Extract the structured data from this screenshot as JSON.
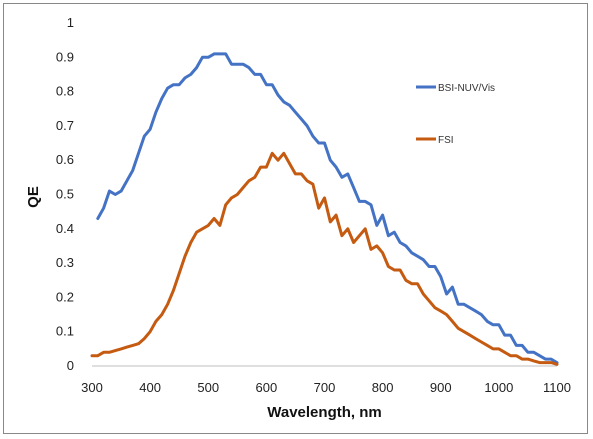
{
  "chart_data": {
    "type": "line",
    "title": "",
    "xlabel": "Wavelength, nm",
    "ylabel": "QE",
    "xlim": [
      300,
      1100
    ],
    "ylim": [
      0,
      1
    ],
    "xticks": [
      "300",
      "400",
      "500",
      "600",
      "700",
      "800",
      "900",
      "1000",
      "1100"
    ],
    "yticks": [
      "0",
      "0.1",
      "0.2",
      "0.3",
      "0.4",
      "0.5",
      "0.6",
      "0.7",
      "0.8",
      "0.9",
      "1"
    ],
    "grid": false,
    "legend_position": "right",
    "series": [
      {
        "name": "BSI-NUV/Vis",
        "color": "#4472c4",
        "x": [
          310,
          320,
          330,
          340,
          350,
          360,
          370,
          380,
          390,
          400,
          410,
          420,
          430,
          440,
          450,
          460,
          470,
          480,
          490,
          500,
          510,
          520,
          530,
          540,
          550,
          560,
          570,
          580,
          590,
          600,
          610,
          620,
          630,
          640,
          650,
          660,
          670,
          680,
          690,
          700,
          710,
          720,
          730,
          740,
          750,
          760,
          770,
          780,
          790,
          800,
          810,
          820,
          830,
          840,
          850,
          860,
          870,
          880,
          890,
          900,
          910,
          920,
          930,
          940,
          950,
          960,
          970,
          980,
          990,
          1000,
          1010,
          1020,
          1030,
          1040,
          1050,
          1060,
          1070,
          1080,
          1090,
          1100
        ],
        "values": [
          0.43,
          0.46,
          0.51,
          0.5,
          0.51,
          0.54,
          0.57,
          0.62,
          0.67,
          0.69,
          0.74,
          0.78,
          0.81,
          0.82,
          0.82,
          0.84,
          0.85,
          0.87,
          0.9,
          0.9,
          0.91,
          0.91,
          0.91,
          0.88,
          0.88,
          0.88,
          0.87,
          0.85,
          0.85,
          0.82,
          0.82,
          0.79,
          0.77,
          0.76,
          0.74,
          0.72,
          0.7,
          0.67,
          0.65,
          0.65,
          0.6,
          0.58,
          0.55,
          0.56,
          0.52,
          0.48,
          0.48,
          0.47,
          0.41,
          0.44,
          0.38,
          0.39,
          0.36,
          0.35,
          0.33,
          0.32,
          0.31,
          0.29,
          0.29,
          0.26,
          0.21,
          0.23,
          0.18,
          0.18,
          0.17,
          0.16,
          0.15,
          0.13,
          0.12,
          0.12,
          0.09,
          0.09,
          0.06,
          0.06,
          0.04,
          0.04,
          0.03,
          0.02,
          0.02,
          0.01
        ]
      },
      {
        "name": "FSI",
        "color": "#c55a11",
        "x": [
          300,
          310,
          320,
          330,
          340,
          350,
          360,
          370,
          380,
          390,
          400,
          410,
          420,
          430,
          440,
          450,
          460,
          470,
          480,
          490,
          500,
          510,
          520,
          530,
          540,
          550,
          560,
          570,
          580,
          590,
          600,
          610,
          620,
          630,
          640,
          650,
          660,
          670,
          680,
          690,
          700,
          710,
          720,
          730,
          740,
          750,
          760,
          770,
          780,
          790,
          800,
          810,
          820,
          830,
          840,
          850,
          860,
          870,
          880,
          890,
          900,
          910,
          920,
          930,
          940,
          950,
          960,
          970,
          980,
          990,
          1000,
          1010,
          1020,
          1030,
          1040,
          1050,
          1060,
          1070,
          1080,
          1090,
          1100
        ],
        "values": [
          0.03,
          0.03,
          0.04,
          0.04,
          0.045,
          0.05,
          0.055,
          0.06,
          0.065,
          0.08,
          0.1,
          0.13,
          0.15,
          0.18,
          0.22,
          0.27,
          0.32,
          0.36,
          0.39,
          0.4,
          0.41,
          0.43,
          0.41,
          0.47,
          0.49,
          0.5,
          0.52,
          0.54,
          0.55,
          0.58,
          0.58,
          0.62,
          0.6,
          0.62,
          0.59,
          0.56,
          0.56,
          0.54,
          0.53,
          0.46,
          0.49,
          0.42,
          0.44,
          0.38,
          0.4,
          0.36,
          0.38,
          0.4,
          0.34,
          0.35,
          0.33,
          0.29,
          0.28,
          0.28,
          0.25,
          0.24,
          0.24,
          0.21,
          0.19,
          0.17,
          0.16,
          0.15,
          0.13,
          0.11,
          0.1,
          0.09,
          0.08,
          0.07,
          0.06,
          0.05,
          0.05,
          0.04,
          0.03,
          0.03,
          0.02,
          0.02,
          0.015,
          0.01,
          0.01,
          0.01,
          0.005
        ]
      }
    ]
  }
}
